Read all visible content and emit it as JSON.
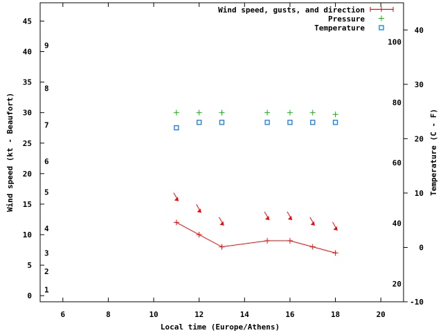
{
  "chart_data": {
    "type": "line",
    "title": "",
    "xlabel": "Local time (Europe/Athens)",
    "ylabel": "Wind speed (kt - Beaufort)",
    "y2label": "Temperature (C - F)",
    "xlim": [
      5,
      21
    ],
    "ylim": [
      -1,
      48
    ],
    "y2lim": [
      -10,
      45
    ],
    "xticks": [
      6,
      8,
      10,
      12,
      14,
      16,
      18,
      20
    ],
    "yticks": [
      0,
      5,
      10,
      15,
      20,
      25,
      30,
      35,
      40,
      45
    ],
    "y2ticks": [
      -10,
      0,
      10,
      20,
      30,
      40
    ],
    "fahrenheit_labels": [
      {
        "label": "20",
        "celsius": -6.67
      },
      {
        "label": "40",
        "celsius": 4.44
      },
      {
        "label": "60",
        "celsius": 15.56
      },
      {
        "label": "80",
        "celsius": 26.67
      },
      {
        "label": "100",
        "celsius": 37.78
      }
    ],
    "beaufort_labels": [
      {
        "label": "1",
        "kt": 1
      },
      {
        "label": "2",
        "kt": 4
      },
      {
        "label": "3",
        "kt": 7
      },
      {
        "label": "4",
        "kt": 11
      },
      {
        "label": "5",
        "kt": 17
      },
      {
        "label": "6",
        "kt": 22
      },
      {
        "label": "7",
        "kt": 28
      },
      {
        "label": "8",
        "kt": 34
      },
      {
        "label": "9",
        "kt": 41
      }
    ],
    "legend": {
      "position": "top-right",
      "entries": [
        "Wind speed, gusts, and direction",
        "Pressure",
        "Temperature"
      ]
    },
    "series": [
      {
        "name": "Wind speed, gusts, and direction",
        "color": "#ff0000",
        "axis": "y",
        "x": [
          11,
          12,
          13,
          15,
          16,
          17,
          18
        ],
        "values": [
          12,
          10,
          8,
          9,
          9,
          8,
          7
        ],
        "arrow_values": [
          15.5,
          13.6,
          11.5,
          12.4,
          12.4,
          11.5,
          10.7
        ],
        "direction": "NW"
      },
      {
        "name": "Pressure",
        "color": "#00c000",
        "axis": "y",
        "x": [
          11,
          12,
          13,
          15,
          16,
          17,
          18
        ],
        "values": [
          30,
          30,
          30,
          30,
          30,
          30,
          29.7
        ]
      },
      {
        "name": "Temperature",
        "color": "#0080ff",
        "axis": "y2",
        "x": [
          11,
          12,
          13,
          15,
          16,
          17,
          18
        ],
        "values": [
          22,
          23,
          23,
          23,
          23,
          23,
          23
        ]
      }
    ]
  }
}
